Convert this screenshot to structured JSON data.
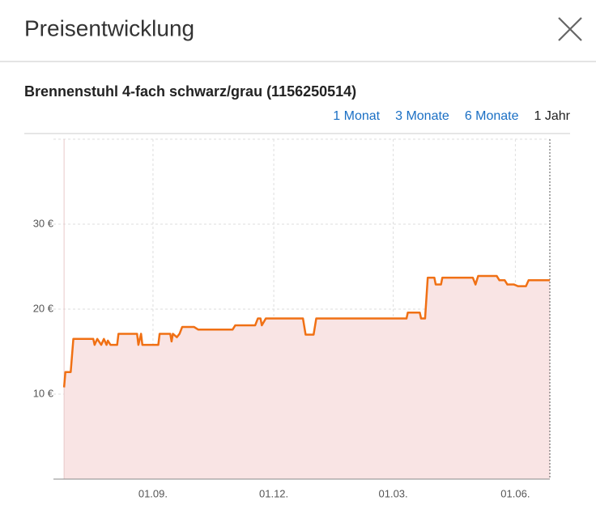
{
  "header": {
    "title": "Preisentwicklung"
  },
  "product": {
    "title": "Brennenstuhl 4-fach schwarz/grau (1156250514)"
  },
  "ranges": {
    "options": [
      "1 Monat",
      "3 Monate",
      "6 Monate",
      "1 Jahr"
    ],
    "selected": 3
  },
  "chart_data": {
    "type": "line",
    "color": "#f07014",
    "area_color": "#f9e4e4",
    "grid": true,
    "xlim": [
      0,
      374
    ],
    "ylim": [
      0,
      40
    ],
    "xticks": [
      {
        "value": 75,
        "label": "01.09."
      },
      {
        "value": 166,
        "label": "01.12."
      },
      {
        "value": 256,
        "label": "01.03."
      },
      {
        "value": 348,
        "label": "01.06."
      }
    ],
    "yticks": [
      {
        "value": 10,
        "label": "10 €"
      },
      {
        "value": 20,
        "label": "20 €"
      },
      {
        "value": 30,
        "label": "30 €"
      }
    ],
    "x": [
      8,
      9,
      13,
      15,
      30,
      31,
      33,
      36,
      38,
      40,
      41,
      43,
      48,
      49,
      63,
      64,
      66,
      67,
      79,
      80,
      88,
      89,
      90,
      93,
      95,
      97,
      106,
      109,
      135,
      137,
      152,
      154,
      156,
      157,
      160,
      188,
      190,
      196,
      198,
      266,
      267,
      276,
      277,
      280,
      282,
      287,
      288,
      292,
      293,
      316,
      318,
      320,
      334,
      336,
      340,
      342,
      347,
      350,
      356,
      358,
      374
    ],
    "values": [
      10.8,
      12.6,
      12.6,
      16.5,
      16.5,
      15.8,
      16.5,
      15.8,
      16.5,
      15.8,
      16.3,
      15.8,
      15.8,
      17.1,
      17.1,
      15.8,
      17.1,
      15.8,
      15.8,
      17.1,
      17.1,
      16.2,
      17.1,
      16.7,
      17.1,
      17.9,
      17.9,
      17.6,
      17.6,
      18.1,
      18.1,
      18.9,
      18.9,
      18.1,
      18.9,
      18.9,
      17.0,
      17.0,
      18.9,
      18.9,
      19.6,
      19.6,
      18.9,
      18.9,
      23.7,
      23.7,
      22.9,
      22.9,
      23.7,
      23.7,
      22.9,
      23.9,
      23.9,
      23.4,
      23.4,
      22.9,
      22.9,
      22.7,
      22.7,
      23.4,
      23.4
    ]
  }
}
